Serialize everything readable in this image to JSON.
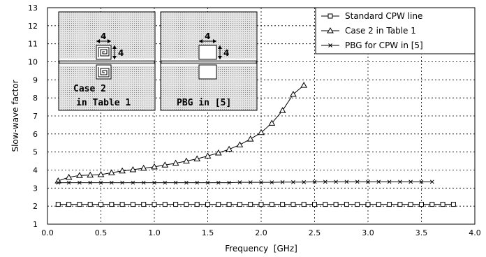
{
  "chart_data": {
    "type": "line",
    "title": "",
    "xlabel": "Frequency  [GHz]",
    "ylabel": "Slow-wave factor",
    "xlim": [
      0.0,
      4.0
    ],
    "ylim": [
      1,
      13
    ],
    "x_ticks": [
      "0.0",
      "0.5",
      "1.0",
      "1.5",
      "2.0",
      "2.5",
      "3.0",
      "3.5",
      "4.0"
    ],
    "y_ticks": [
      "1",
      "2",
      "3",
      "4",
      "5",
      "6",
      "7",
      "8",
      "9",
      "10",
      "11",
      "12",
      "13"
    ],
    "grid": true,
    "legend_position": "top-right",
    "series": [
      {
        "name": "Standard CPW line",
        "marker": "square",
        "x": [
          0.1,
          0.2,
          0.3,
          0.4,
          0.5,
          0.6,
          0.7,
          0.8,
          0.9,
          1.0,
          1.1,
          1.2,
          1.3,
          1.4,
          1.5,
          1.6,
          1.7,
          1.8,
          1.9,
          2.0,
          2.1,
          2.2,
          2.3,
          2.4,
          2.5,
          2.6,
          2.7,
          2.8,
          2.9,
          3.0,
          3.1,
          3.2,
          3.3,
          3.4,
          3.5,
          3.6,
          3.7,
          3.8
        ],
        "y": [
          2.1,
          2.1,
          2.1,
          2.1,
          2.1,
          2.1,
          2.1,
          2.1,
          2.1,
          2.1,
          2.1,
          2.1,
          2.1,
          2.1,
          2.1,
          2.1,
          2.1,
          2.1,
          2.1,
          2.1,
          2.1,
          2.1,
          2.1,
          2.1,
          2.1,
          2.1,
          2.1,
          2.1,
          2.1,
          2.1,
          2.1,
          2.1,
          2.1,
          2.1,
          2.1,
          2.1,
          2.1,
          2.1
        ]
      },
      {
        "name": "Case 2 in Table 1",
        "marker": "triangle",
        "x": [
          0.1,
          0.2,
          0.3,
          0.4,
          0.5,
          0.6,
          0.7,
          0.8,
          0.9,
          1.0,
          1.1,
          1.2,
          1.3,
          1.4,
          1.5,
          1.6,
          1.7,
          1.8,
          1.9,
          2.0,
          2.1,
          2.2,
          2.3,
          2.4
        ],
        "y": [
          3.4,
          3.6,
          3.7,
          3.72,
          3.75,
          3.85,
          3.95,
          4.02,
          4.1,
          4.18,
          4.28,
          4.38,
          4.5,
          4.62,
          4.78,
          4.95,
          5.15,
          5.4,
          5.72,
          6.08,
          6.6,
          7.3,
          8.2,
          8.7
        ]
      },
      {
        "name": "PBG for CPW in [5]",
        "marker": "x",
        "x": [
          0.1,
          0.2,
          0.3,
          0.4,
          0.5,
          0.6,
          0.7,
          0.8,
          0.9,
          1.0,
          1.1,
          1.2,
          1.3,
          1.4,
          1.5,
          1.6,
          1.7,
          1.8,
          1.9,
          2.0,
          2.1,
          2.2,
          2.3,
          2.4,
          2.5,
          2.6,
          2.7,
          2.8,
          2.9,
          3.0,
          3.1,
          3.2,
          3.3,
          3.4,
          3.5,
          3.6
        ],
        "y": [
          3.3,
          3.3,
          3.3,
          3.3,
          3.3,
          3.3,
          3.3,
          3.3,
          3.3,
          3.3,
          3.3,
          3.3,
          3.3,
          3.3,
          3.3,
          3.3,
          3.3,
          3.32,
          3.32,
          3.32,
          3.32,
          3.33,
          3.33,
          3.33,
          3.35,
          3.35,
          3.35,
          3.35,
          3.35,
          3.35,
          3.35,
          3.35,
          3.35,
          3.35,
          3.35,
          3.35
        ]
      }
    ],
    "insets": [
      {
        "label_line1": "Case 2",
        "label_line2": "in Table 1",
        "dim_width": "4",
        "dim_height": "4"
      },
      {
        "label": "PBG in [5]",
        "dim_width": "4",
        "dim_height": "4"
      }
    ]
  }
}
